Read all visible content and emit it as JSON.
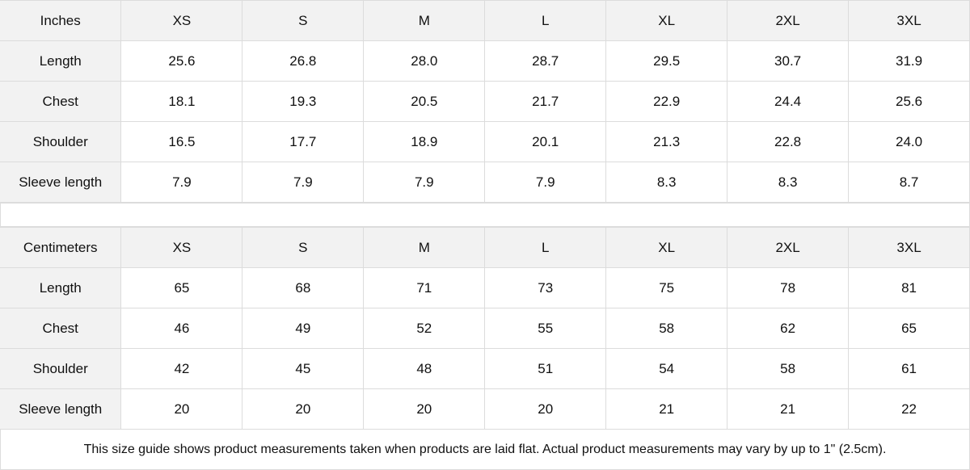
{
  "tables": [
    {
      "unit": "Inches",
      "sizes": [
        "XS",
        "S",
        "M",
        "L",
        "XL",
        "2XL",
        "3XL"
      ],
      "rows": [
        {
          "label": "Length",
          "values": [
            "25.6",
            "26.8",
            "28.0",
            "28.7",
            "29.5",
            "30.7",
            "31.9"
          ]
        },
        {
          "label": "Chest",
          "values": [
            "18.1",
            "19.3",
            "20.5",
            "21.7",
            "22.9",
            "24.4",
            "25.6"
          ]
        },
        {
          "label": "Shoulder",
          "values": [
            "16.5",
            "17.7",
            "18.9",
            "20.1",
            "21.3",
            "22.8",
            "24.0"
          ]
        },
        {
          "label": "Sleeve length",
          "values": [
            "7.9",
            "7.9",
            "7.9",
            "7.9",
            "8.3",
            "8.3",
            "8.7"
          ]
        }
      ]
    },
    {
      "unit": "Centimeters",
      "sizes": [
        "XS",
        "S",
        "M",
        "L",
        "XL",
        "2XL",
        "3XL"
      ],
      "rows": [
        {
          "label": "Length",
          "values": [
            "65",
            "68",
            "71",
            "73",
            "75",
            "78",
            "81"
          ]
        },
        {
          "label": "Chest",
          "values": [
            "46",
            "49",
            "52",
            "55",
            "58",
            "62",
            "65"
          ]
        },
        {
          "label": "Shoulder",
          "values": [
            "42",
            "45",
            "48",
            "51",
            "54",
            "58",
            "61"
          ]
        },
        {
          "label": "Sleeve length",
          "values": [
            "20",
            "20",
            "20",
            "20",
            "21",
            "21",
            "22"
          ]
        }
      ]
    }
  ],
  "note": "This size guide shows product measurements taken when products are laid flat.  Actual product measurements may vary by up to 1\" (2.5cm)."
}
